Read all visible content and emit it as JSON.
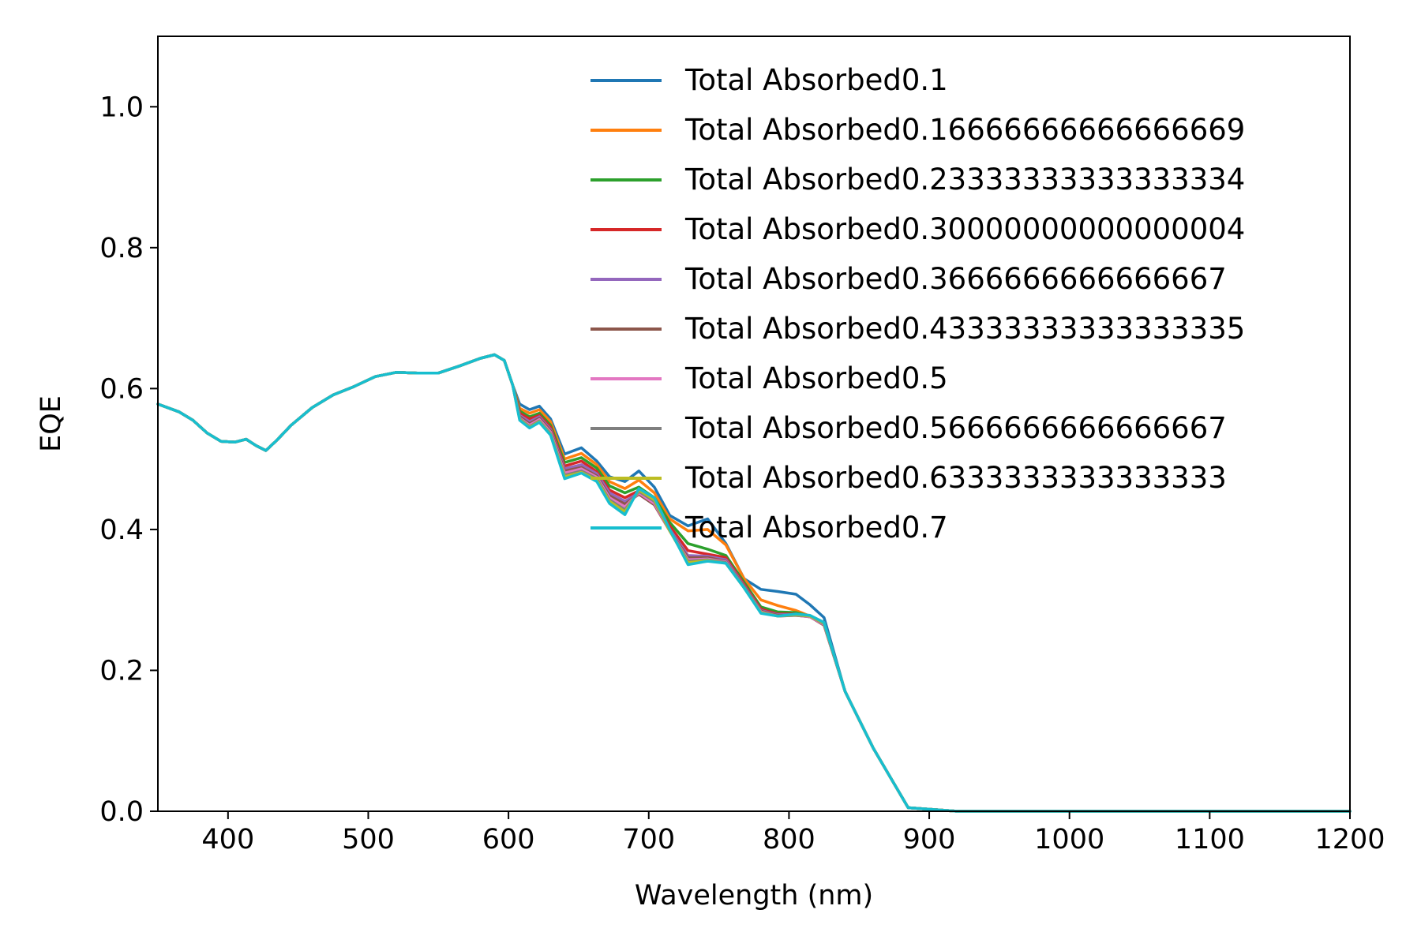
{
  "chart_data": {
    "type": "line",
    "title": "",
    "xlabel": "Wavelength (nm)",
    "ylabel": "EQE",
    "xlim": [
      350,
      1200
    ],
    "ylim": [
      0,
      1.1
    ],
    "xticks": [
      400,
      500,
      600,
      700,
      800,
      900,
      1000,
      1100,
      1200
    ],
    "xtick_labels": [
      "400",
      "500",
      "600",
      "700",
      "800",
      "900",
      "1000",
      "1100",
      "1200"
    ],
    "yticks": [
      0.0,
      0.2,
      0.4,
      0.6,
      0.8,
      1.0
    ],
    "ytick_labels": [
      "0.0",
      "0.2",
      "0.4",
      "0.6",
      "0.8",
      "1.0"
    ],
    "grid": false,
    "legend_position": "top-right",
    "shared_curve": {
      "x": [
        350,
        365,
        375,
        385,
        395,
        405,
        413,
        420,
        427,
        435,
        445,
        460,
        475,
        490,
        505,
        520,
        535,
        550,
        565,
        580,
        590,
        597,
        603
      ],
      "y": [
        0.578,
        0.567,
        0.555,
        0.537,
        0.525,
        0.524,
        0.528,
        0.519,
        0.512,
        0.527,
        0.548,
        0.573,
        0.591,
        0.603,
        0.617,
        0.623,
        0.622,
        0.622,
        0.632,
        0.643,
        0.648,
        0.64,
        0.605
      ]
    },
    "series": [
      {
        "name": "Total Absorbed0.1",
        "color": "#1f77b4",
        "x": [
          608,
          615,
          622,
          630,
          640,
          652,
          663,
          672,
          683,
          693,
          704,
          715,
          728,
          742,
          755,
          768,
          780,
          792,
          805,
          815,
          825,
          840,
          860,
          885,
          920,
          1200
        ],
        "y": [
          0.578,
          0.57,
          0.575,
          0.557,
          0.507,
          0.516,
          0.497,
          0.475,
          0.468,
          0.483,
          0.46,
          0.42,
          0.405,
          0.415,
          0.38,
          0.33,
          0.315,
          0.312,
          0.308,
          0.293,
          0.275,
          0.17,
          0.09,
          0.005,
          0.0,
          0.0
        ]
      },
      {
        "name": "Total Absorbed0.16666666666666669",
        "color": "#ff7f0e",
        "x": [
          608,
          615,
          622,
          630,
          640,
          652,
          663,
          672,
          683,
          693,
          704,
          715,
          728,
          742,
          755,
          768,
          780,
          792,
          805,
          815,
          825,
          840,
          860,
          885,
          920,
          1200
        ],
        "y": [
          0.572,
          0.565,
          0.57,
          0.553,
          0.5,
          0.508,
          0.492,
          0.468,
          0.458,
          0.47,
          0.452,
          0.415,
          0.398,
          0.4,
          0.378,
          0.33,
          0.3,
          0.292,
          0.285,
          0.277,
          0.268,
          0.17,
          0.09,
          0.005,
          0.0,
          0.0
        ]
      },
      {
        "name": "Total Absorbed0.23333333333333334",
        "color": "#2ca02c",
        "x": [
          608,
          615,
          622,
          630,
          640,
          652,
          663,
          672,
          683,
          693,
          704,
          715,
          728,
          742,
          755,
          768,
          780,
          792,
          805,
          815,
          825,
          840,
          860,
          885,
          920,
          1200
        ],
        "y": [
          0.568,
          0.56,
          0.565,
          0.548,
          0.495,
          0.502,
          0.487,
          0.462,
          0.452,
          0.46,
          0.445,
          0.41,
          0.38,
          0.372,
          0.363,
          0.325,
          0.29,
          0.283,
          0.282,
          0.277,
          0.266,
          0.17,
          0.09,
          0.005,
          0.0,
          0.0
        ]
      },
      {
        "name": "Total Absorbed0.30000000000000004",
        "color": "#d62728",
        "x": [
          608,
          615,
          622,
          630,
          640,
          652,
          663,
          672,
          683,
          693,
          704,
          715,
          728,
          742,
          755,
          768,
          780,
          792,
          805,
          815,
          825,
          840,
          860,
          885,
          920,
          1200
        ],
        "y": [
          0.565,
          0.557,
          0.562,
          0.545,
          0.49,
          0.497,
          0.482,
          0.456,
          0.445,
          0.455,
          0.44,
          0.405,
          0.37,
          0.365,
          0.36,
          0.322,
          0.287,
          0.28,
          0.28,
          0.276,
          0.265,
          0.17,
          0.09,
          0.005,
          0.0,
          0.0
        ]
      },
      {
        "name": "Total Absorbed0.3666666666666667",
        "color": "#9467bd",
        "x": [
          608,
          615,
          622,
          630,
          640,
          652,
          663,
          672,
          683,
          693,
          704,
          715,
          728,
          742,
          755,
          768,
          780,
          792,
          805,
          815,
          825,
          840,
          860,
          885,
          920,
          1200
        ],
        "y": [
          0.562,
          0.553,
          0.56,
          0.542,
          0.486,
          0.492,
          0.479,
          0.452,
          0.44,
          0.452,
          0.437,
          0.4,
          0.363,
          0.362,
          0.357,
          0.32,
          0.285,
          0.279,
          0.279,
          0.276,
          0.265,
          0.17,
          0.09,
          0.005,
          0.0,
          0.0
        ]
      },
      {
        "name": "Total Absorbed0.43333333333333335",
        "color": "#8c564b",
        "x": [
          608,
          615,
          622,
          630,
          640,
          652,
          663,
          672,
          683,
          693,
          704,
          715,
          728,
          742,
          755,
          768,
          780,
          792,
          805,
          815,
          825,
          840,
          860,
          885,
          920,
          1200
        ],
        "y": [
          0.56,
          0.55,
          0.558,
          0.54,
          0.483,
          0.488,
          0.476,
          0.448,
          0.436,
          0.45,
          0.435,
          0.398,
          0.36,
          0.36,
          0.355,
          0.319,
          0.284,
          0.278,
          0.278,
          0.276,
          0.264,
          0.17,
          0.09,
          0.005,
          0.0,
          0.0
        ]
      },
      {
        "name": "Total Absorbed0.5",
        "color": "#e377c2",
        "x": [
          608,
          615,
          622,
          630,
          640,
          652,
          663,
          672,
          683,
          693,
          704,
          715,
          728,
          742,
          755,
          768,
          780,
          792,
          805,
          815,
          825,
          840,
          860,
          885,
          920,
          1200
        ],
        "y": [
          0.558,
          0.548,
          0.556,
          0.538,
          0.48,
          0.486,
          0.474,
          0.445,
          0.432,
          0.452,
          0.437,
          0.398,
          0.357,
          0.358,
          0.354,
          0.318,
          0.283,
          0.277,
          0.278,
          0.276,
          0.265,
          0.17,
          0.09,
          0.005,
          0.0,
          0.0
        ]
      },
      {
        "name": "Total Absorbed0.5666666666666667",
        "color": "#7f7f7f",
        "x": [
          608,
          615,
          622,
          630,
          640,
          652,
          663,
          672,
          683,
          693,
          704,
          715,
          728,
          742,
          755,
          768,
          780,
          792,
          805,
          815,
          825,
          840,
          860,
          885,
          920,
          1200
        ],
        "y": [
          0.557,
          0.546,
          0.554,
          0.536,
          0.477,
          0.483,
          0.472,
          0.442,
          0.428,
          0.454,
          0.44,
          0.398,
          0.355,
          0.357,
          0.353,
          0.318,
          0.282,
          0.277,
          0.278,
          0.277,
          0.266,
          0.17,
          0.09,
          0.005,
          0.0,
          0.0
        ]
      },
      {
        "name": "Total Absorbed0.6333333333333333",
        "color": "#bcbd22",
        "x": [
          608,
          615,
          622,
          630,
          640,
          652,
          663,
          672,
          683,
          693,
          704,
          715,
          728,
          742,
          755,
          768,
          780,
          792,
          805,
          815,
          825,
          840,
          860,
          885,
          920,
          1200
        ],
        "y": [
          0.556,
          0.545,
          0.553,
          0.535,
          0.475,
          0.481,
          0.47,
          0.44,
          0.425,
          0.456,
          0.442,
          0.398,
          0.353,
          0.356,
          0.352,
          0.317,
          0.282,
          0.277,
          0.279,
          0.277,
          0.267,
          0.17,
          0.09,
          0.005,
          0.0,
          0.0
        ]
      },
      {
        "name": "Total Absorbed0.7",
        "color": "#17becf",
        "x": [
          608,
          615,
          622,
          630,
          640,
          652,
          663,
          672,
          683,
          693,
          704,
          715,
          728,
          742,
          755,
          768,
          780,
          792,
          805,
          815,
          825,
          840,
          860,
          885,
          920,
          1200
        ],
        "y": [
          0.555,
          0.544,
          0.552,
          0.534,
          0.472,
          0.48,
          0.468,
          0.437,
          0.421,
          0.458,
          0.445,
          0.4,
          0.35,
          0.355,
          0.352,
          0.317,
          0.281,
          0.277,
          0.28,
          0.278,
          0.268,
          0.17,
          0.09,
          0.005,
          0.0,
          0.0
        ]
      }
    ]
  }
}
